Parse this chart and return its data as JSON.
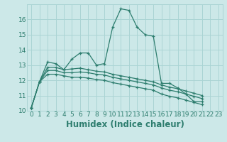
{
  "xlabel": "Humidex (Indice chaleur)",
  "bg_color": "#cce8e8",
  "line_color": "#2d7d6e",
  "xlim": [
    -0.5,
    23.5
  ],
  "ylim": [
    10,
    17
  ],
  "yticks": [
    10,
    11,
    12,
    13,
    14,
    15,
    16
  ],
  "xticks": [
    0,
    1,
    2,
    3,
    4,
    5,
    6,
    7,
    8,
    9,
    10,
    11,
    12,
    13,
    14,
    15,
    16,
    17,
    18,
    19,
    20,
    21,
    22,
    23
  ],
  "series": [
    [
      10.2,
      11.9,
      13.2,
      13.1,
      12.7,
      13.4,
      13.8,
      13.8,
      13.0,
      13.1,
      15.5,
      16.7,
      16.6,
      15.5,
      15.0,
      14.9,
      11.8,
      11.8,
      11.5,
      11.1,
      10.6,
      10.6
    ],
    [
      10.2,
      11.9,
      12.85,
      12.85,
      12.7,
      12.75,
      12.8,
      12.7,
      12.6,
      12.55,
      12.4,
      12.3,
      12.2,
      12.1,
      12.0,
      11.9,
      11.7,
      11.55,
      11.45,
      11.3,
      11.15,
      11.0
    ],
    [
      10.2,
      11.9,
      12.65,
      12.65,
      12.5,
      12.5,
      12.55,
      12.5,
      12.4,
      12.35,
      12.2,
      12.1,
      12.0,
      11.9,
      11.8,
      11.7,
      11.5,
      11.35,
      11.25,
      11.1,
      10.95,
      10.8
    ],
    [
      10.2,
      11.9,
      12.4,
      12.4,
      12.3,
      12.2,
      12.2,
      12.15,
      12.05,
      12.0,
      11.85,
      11.75,
      11.65,
      11.55,
      11.45,
      11.35,
      11.1,
      10.95,
      10.85,
      10.7,
      10.55,
      10.4
    ]
  ],
  "grid_color": "#aad4d4",
  "tick_fontsize": 6.5,
  "label_fontsize": 8.5
}
